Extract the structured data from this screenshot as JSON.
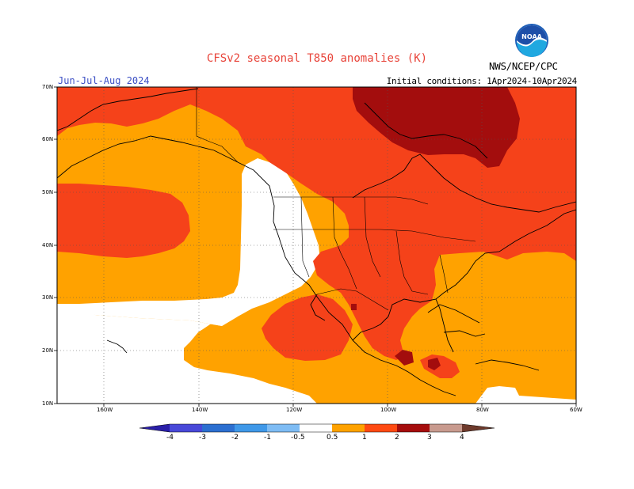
{
  "title": "CFSv2 seasonal T850 anomalies (K)",
  "org": "NWS/NCEP/CPC",
  "season": "Jun-Jul-Aug 2024",
  "init": "Initial conditions: 1Apr2024-10Apr2024",
  "logo_text": "NOAA",
  "lat_labels": [
    "70N",
    "60N",
    "50N",
    "40N",
    "30N",
    "20N",
    "10N"
  ],
  "lon_labels": [
    "160W",
    "140W",
    "120W",
    "100W",
    "80W",
    "60W"
  ],
  "colorbar": {
    "labels": [
      "-4",
      "-3",
      "-2",
      "-1",
      "-0.5",
      "0.5",
      "1",
      "2",
      "3",
      "4"
    ],
    "colors": [
      "#2a1fa8",
      "#4848d8",
      "#2c6fd0",
      "#3f98e8",
      "#7ebcf4",
      "#ffffff",
      "#ffa200",
      "#ff4a12",
      "#a50d0d",
      "#c89a8e",
      "#6e3a2c"
    ]
  },
  "colors": {
    "c_0_5_1": "#ffa200",
    "c_1_2": "#f5421a",
    "c_2_3": "#a30d0d",
    "title": "#e8443a",
    "season": "#3b4fc4"
  }
}
